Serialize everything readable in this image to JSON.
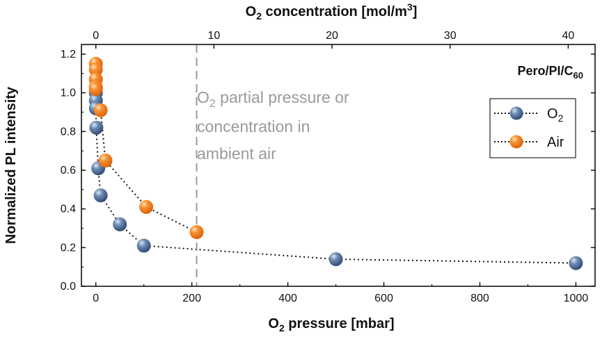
{
  "chart_data": {
    "type": "scatter",
    "title": "",
    "xlabel": "O2 pressure [mbar]",
    "xlabel_parts": {
      "main": "O",
      "sub": "2",
      "rest": " pressure [mbar]"
    },
    "ylabel": "Normalized PL intensity",
    "top_xlabel": "O2 concentration [mol/m3]",
    "top_xlabel_parts": {
      "main": "O",
      "sub": "2",
      "mid": " concentration [mol/m",
      "sup": "3",
      "end": "]"
    },
    "xlim": [
      -30,
      1040
    ],
    "ylim": [
      0,
      1.25
    ],
    "x_ticks": [
      0,
      200,
      400,
      600,
      800,
      1000
    ],
    "x_tick_labels": [
      "0",
      "200",
      "400",
      "600",
      "800",
      "1000"
    ],
    "y_ticks": [
      0,
      0.2,
      0.4,
      0.6,
      0.8,
      1.0,
      1.2
    ],
    "y_tick_labels": [
      "0.0",
      "0.2",
      "0.4",
      "0.6",
      "0.8",
      "1.0",
      "1.2"
    ],
    "top_x_ticks": [
      0,
      10,
      20,
      30,
      40
    ],
    "top_x_tick_labels": [
      "0",
      "10",
      "20",
      "30",
      "40"
    ],
    "top_axis_mbar_per_unit": 24.6,
    "grid": false,
    "legend_position": "top-right",
    "sample_label": {
      "main": "Pero/PI/C",
      "sub": "60"
    },
    "reference_line": {
      "x": 210,
      "label_lines": [
        "O2 partial pressure or",
        "concentration in",
        "ambient air"
      ],
      "label_first_line_parts": {
        "main": "O",
        "sub": "2",
        "rest": " partial pressure or"
      }
    },
    "series": [
      {
        "name": "O2",
        "legend_parts": {
          "main": "O",
          "sub": "2"
        },
        "color": "#3d5f8a",
        "x": [
          0,
          0,
          0,
          1,
          5,
          10,
          50,
          100,
          500,
          1000
        ],
        "y": [
          1.0,
          0.96,
          0.92,
          0.82,
          0.61,
          0.47,
          0.32,
          0.21,
          0.14,
          0.12
        ]
      },
      {
        "name": "Air",
        "legend_parts": {
          "main": "Air",
          "sub": ""
        },
        "color": "#f07a22",
        "x": [
          0,
          0,
          0,
          0,
          0,
          10,
          20,
          105,
          210
        ],
        "y": [
          1.15,
          1.12,
          1.07,
          1.03,
          1.02,
          0.91,
          0.65,
          0.41,
          0.28
        ]
      }
    ]
  }
}
